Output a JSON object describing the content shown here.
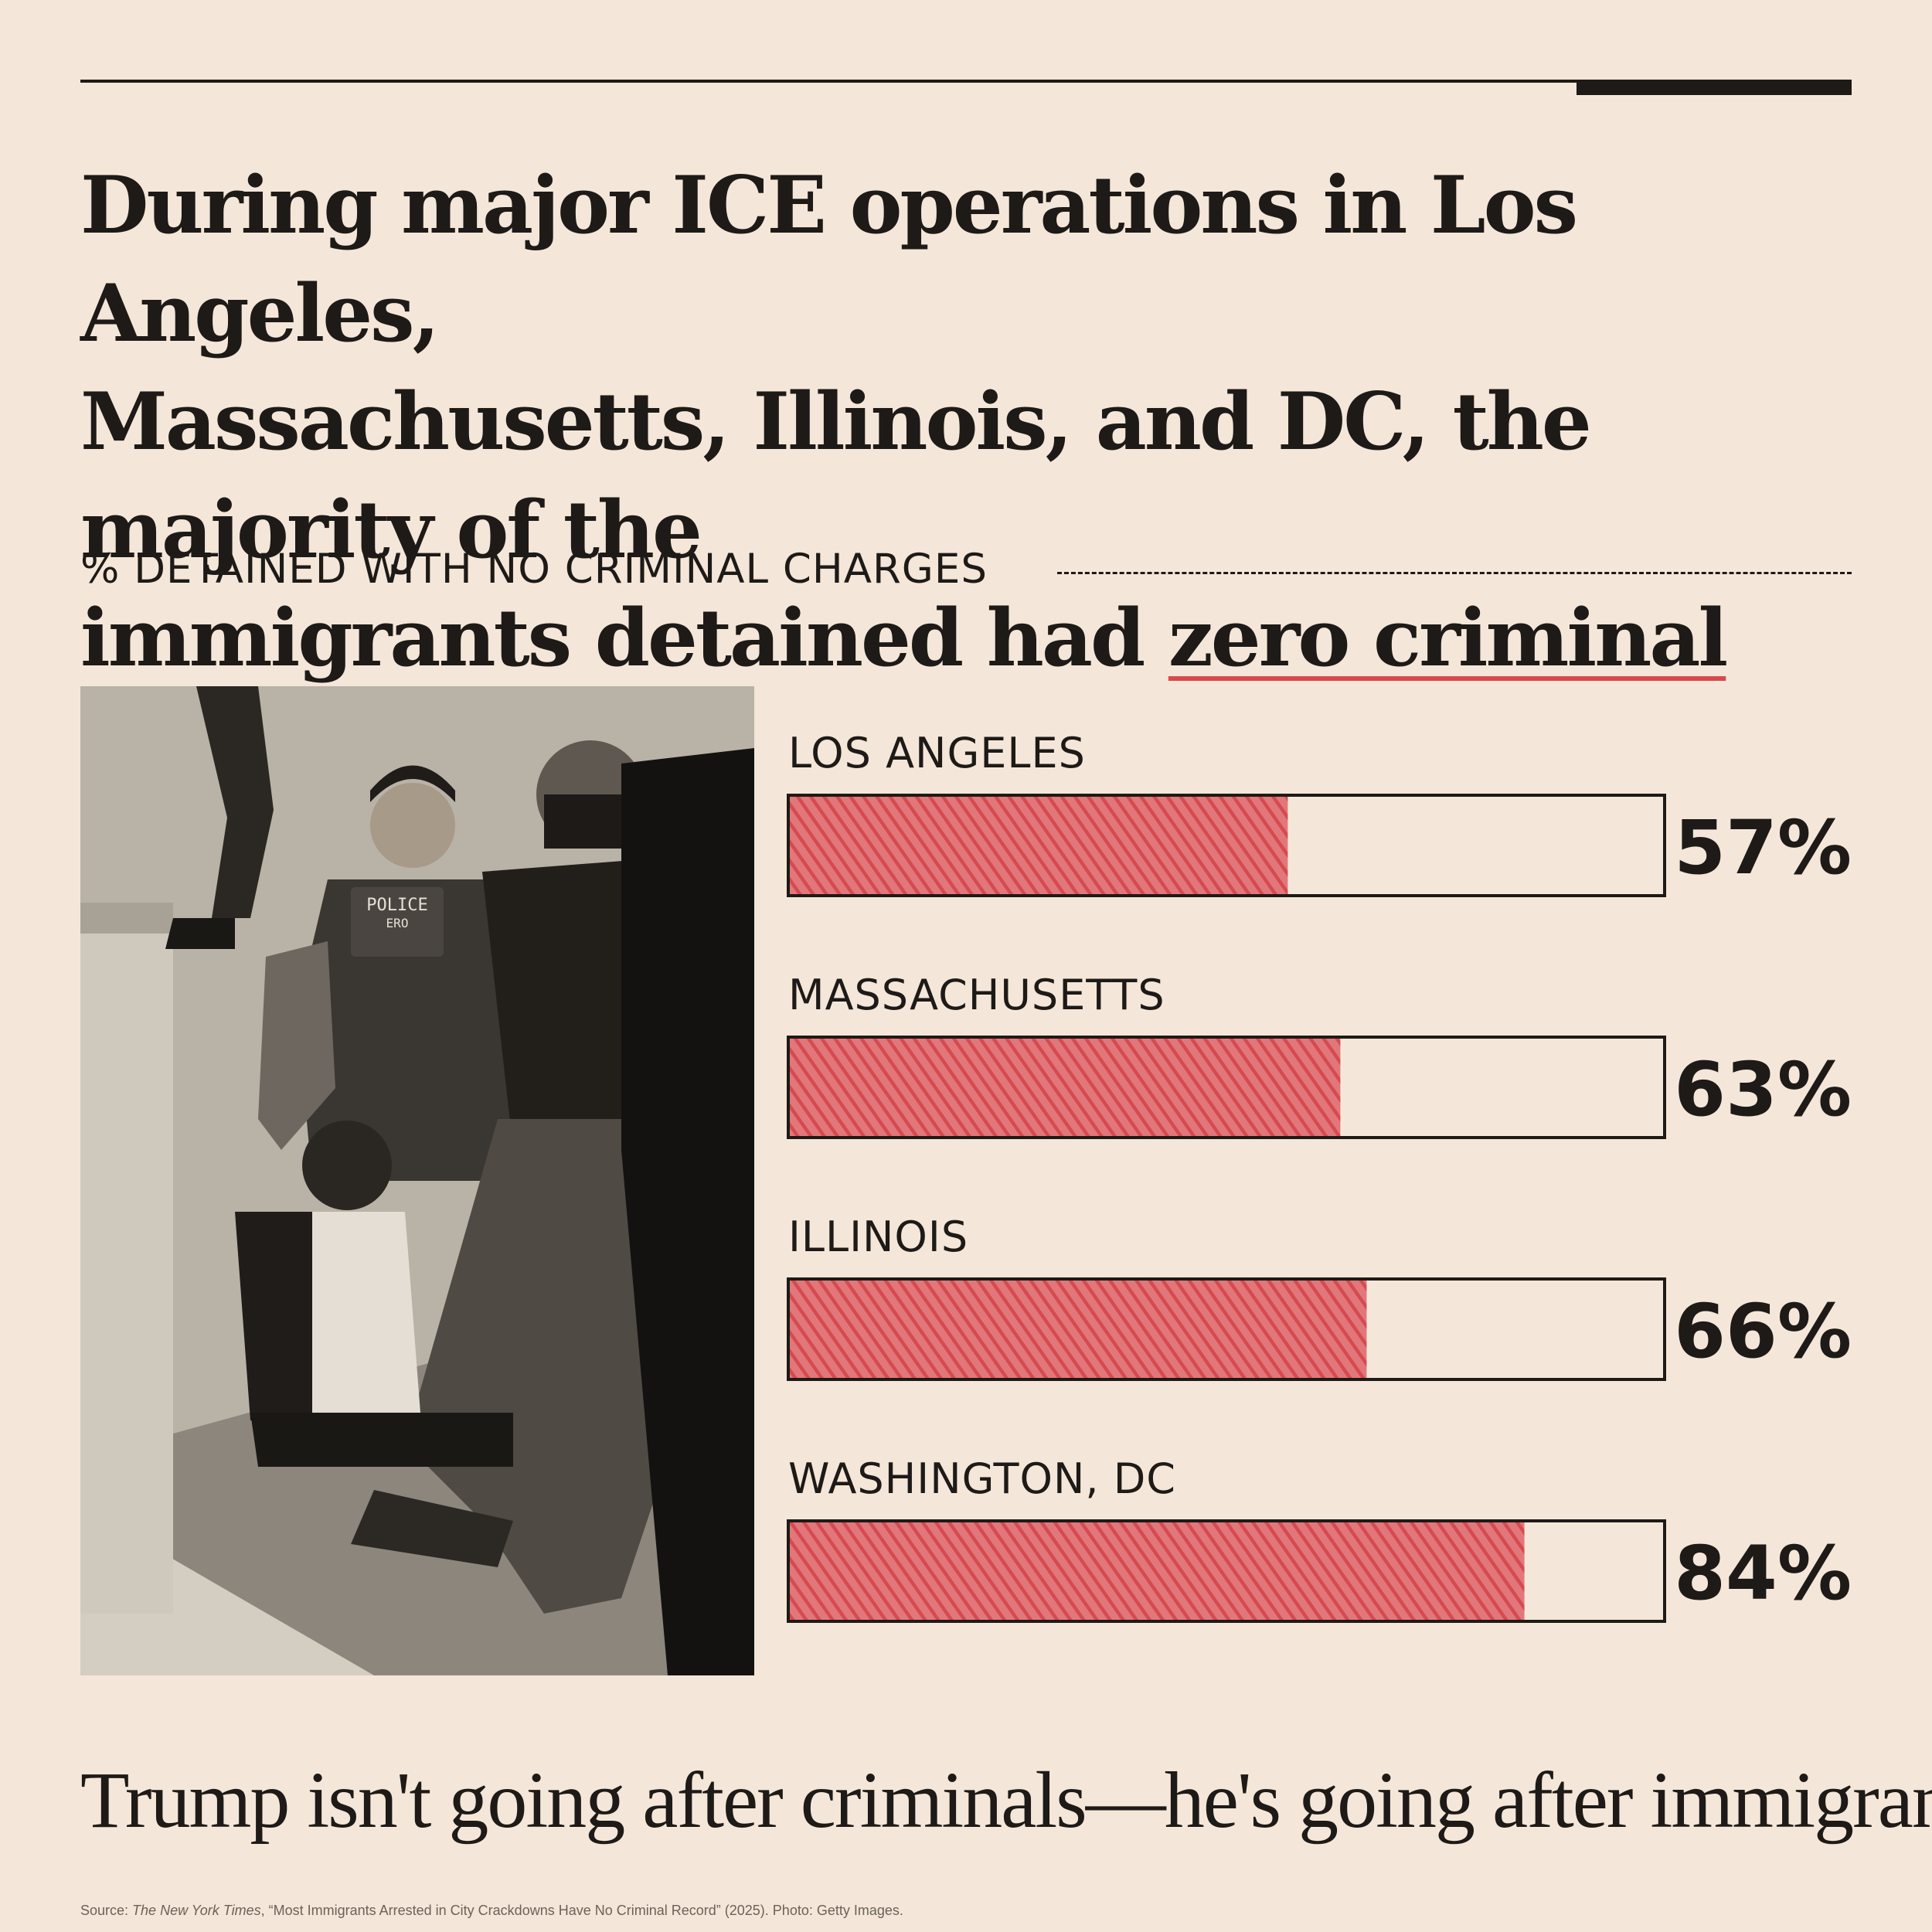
{
  "headline": {
    "line1": "During major ICE operations in Los Angeles,",
    "line2": "Massachusetts, Illinois, and DC, the majority of the",
    "line3_before": "immigrants detained had ",
    "line3_highlight": "zero criminal record",
    "line3_after": "."
  },
  "chart_data": {
    "type": "bar",
    "title": "% DETAINED WITH NO CRIMINAL CHARGES",
    "categories": [
      "LOS ANGELES",
      "MASSACHUSETTS",
      "ILLINOIS",
      "WASHINGTON, DC"
    ],
    "values": [
      57,
      63,
      66,
      84
    ],
    "value_labels": [
      "57%",
      "63%",
      "66%",
      "84%"
    ],
    "ylim": [
      0,
      100
    ],
    "orientation": "horizontal",
    "bar_color": "#d64a4f"
  },
  "photo": {
    "badge_line1": "POLICE",
    "badge_line2": "ERO"
  },
  "closing": "Trump isn't going after criminals—he's going after immigrants.",
  "source": {
    "prefix": "Source: ",
    "publication": "The New York Times",
    "rest": ", “Most Immigrants Arrested in City Crackdowns Have No Criminal Record” (2025). Photo: Getty Images."
  },
  "colors": {
    "background": "#f4e7d9",
    "ink": "#1d1a17",
    "accent": "#d64a4f"
  }
}
